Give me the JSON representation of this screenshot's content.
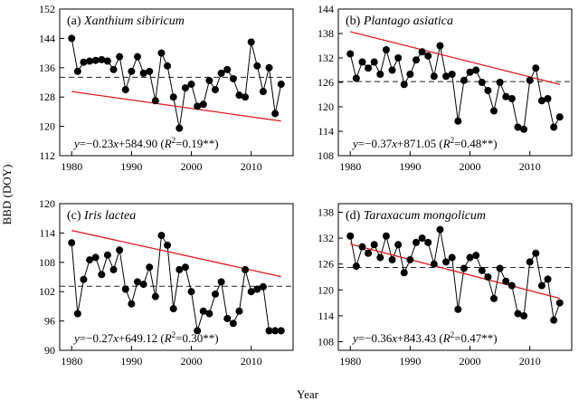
{
  "figure": {
    "xlabel": "Year",
    "ylabel": "BBD (DOY)"
  },
  "chart_data": [
    {
      "type": "scatter",
      "label": "(a)",
      "species": "Xanthium sibiricum",
      "equation": {
        "prefix": "y",
        "slope": "−0.23",
        "var": "x",
        "intercept": "+584.90",
        "r2_label": "R",
        "r2_value": "=0.19**"
      },
      "slope": -0.23,
      "intercept": 584.9,
      "mean": 133.4,
      "xlim": [
        1978,
        2017
      ],
      "xticks": [
        1980,
        1990,
        2000,
        2010
      ],
      "ylim": [
        112,
        152
      ],
      "yticks": [
        112,
        120,
        128,
        136,
        144,
        152
      ],
      "x": [
        1980,
        1981,
        1982,
        1983,
        1984,
        1985,
        1986,
        1987,
        1988,
        1989,
        1990,
        1991,
        1992,
        1993,
        1994,
        1995,
        1996,
        1997,
        1998,
        1999,
        2000,
        2001,
        2002,
        2003,
        2004,
        2005,
        2006,
        2007,
        2008,
        2009,
        2010,
        2011,
        2012,
        2013,
        2014,
        2015
      ],
      "y": [
        144,
        135,
        137.5,
        137.8,
        138,
        138.2,
        137.8,
        135.5,
        139,
        130,
        135,
        139,
        134.5,
        135,
        127,
        140,
        136.5,
        128,
        119.5,
        130.5,
        131.5,
        125.5,
        126,
        132.5,
        130,
        134.5,
        135.5,
        133,
        128.5,
        128,
        143,
        136.5,
        129.5,
        136,
        123.5,
        131.5
      ]
    },
    {
      "type": "scatter",
      "label": "(b)",
      "species": "Plantago asiatica",
      "equation": {
        "prefix": "y",
        "slope": "−0.37",
        "var": "x",
        "intercept": "+871.05",
        "r2_label": "R",
        "r2_value": "=0.48**"
      },
      "slope": -0.37,
      "intercept": 871.05,
      "mean": 126.2,
      "xlim": [
        1978,
        2017
      ],
      "xticks": [
        1980,
        1990,
        2000,
        2010
      ],
      "ylim": [
        108,
        144
      ],
      "yticks": [
        108,
        114,
        120,
        126,
        132,
        138,
        144
      ],
      "x": [
        1980,
        1981,
        1982,
        1983,
        1984,
        1985,
        1986,
        1987,
        1988,
        1989,
        1990,
        1991,
        1992,
        1993,
        1994,
        1995,
        1996,
        1997,
        1998,
        1999,
        2000,
        2001,
        2002,
        2003,
        2004,
        2005,
        2006,
        2007,
        2008,
        2009,
        2010,
        2011,
        2012,
        2013,
        2014,
        2015
      ],
      "y": [
        133,
        127,
        131,
        129.5,
        131,
        128,
        134,
        129,
        132,
        125.5,
        128,
        131.5,
        133.5,
        132.5,
        127.5,
        135,
        127.5,
        128,
        116.5,
        126.5,
        128.5,
        129,
        126,
        124,
        119,
        126,
        122.5,
        122,
        115,
        114.5,
        126.5,
        129.5,
        121.5,
        122,
        115,
        117.5
      ]
    },
    {
      "type": "scatter",
      "label": "(c)",
      "species": "Iris lactea",
      "equation": {
        "prefix": "y",
        "slope": "−0.27",
        "var": "x",
        "intercept": "+649.12",
        "r2_label": "R",
        "r2_value": "=0.30**"
      },
      "slope": -0.27,
      "intercept": 649.12,
      "mean": 103.1,
      "xlim": [
        1978,
        2017
      ],
      "xticks": [
        1980,
        1990,
        2000,
        2010
      ],
      "ylim": [
        90,
        120
      ],
      "yticks": [
        90,
        96,
        102,
        108,
        114,
        120
      ],
      "x": [
        1980,
        1981,
        1982,
        1983,
        1984,
        1985,
        1986,
        1987,
        1988,
        1989,
        1990,
        1991,
        1992,
        1993,
        1994,
        1995,
        1996,
        1997,
        1998,
        1999,
        2000,
        2001,
        2002,
        2003,
        2004,
        2005,
        2006,
        2007,
        2008,
        2009,
        2010,
        2011,
        2012,
        2013,
        2014,
        2015
      ],
      "y": [
        112,
        97.5,
        104.5,
        108.5,
        109,
        105.5,
        109.5,
        106.5,
        110.5,
        102.5,
        99.5,
        104,
        103.5,
        107,
        101,
        113.5,
        111.5,
        98.5,
        106.5,
        107,
        102,
        94,
        98,
        97.5,
        101.5,
        104,
        96.5,
        95.5,
        98,
        106.5,
        102,
        102.5,
        103,
        94,
        94,
        94
      ]
    },
    {
      "type": "scatter",
      "label": "(d)",
      "species": "Taraxacum mongolicum",
      "equation": {
        "prefix": "y",
        "slope": "−0.36",
        "var": "x",
        "intercept": "+843.43",
        "r2_label": "R",
        "r2_value": "=0.47**"
      },
      "slope": -0.36,
      "intercept": 843.43,
      "mean": 125.2,
      "xlim": [
        1978,
        2017
      ],
      "xticks": [
        1980,
        1990,
        2000,
        2010
      ],
      "ylim": [
        106,
        140
      ],
      "yticks": [
        108,
        114,
        120,
        126,
        132,
        138
      ],
      "x": [
        1980,
        1981,
        1982,
        1983,
        1984,
        1985,
        1986,
        1987,
        1988,
        1989,
        1990,
        1991,
        1992,
        1993,
        1994,
        1995,
        1996,
        1997,
        1998,
        1999,
        2000,
        2001,
        2002,
        2003,
        2004,
        2005,
        2006,
        2007,
        2008,
        2009,
        2010,
        2011,
        2012,
        2013,
        2014,
        2015
      ],
      "y": [
        132.5,
        125.5,
        130,
        128.5,
        130.5,
        127.5,
        132.5,
        127,
        130.5,
        124,
        127,
        131,
        132,
        131,
        126,
        134,
        126.5,
        127.5,
        115.5,
        125,
        127.5,
        128,
        124.5,
        123,
        118,
        125,
        122,
        121,
        114.5,
        114,
        126.5,
        128.5,
        121,
        122.5,
        113,
        117
      ]
    }
  ]
}
